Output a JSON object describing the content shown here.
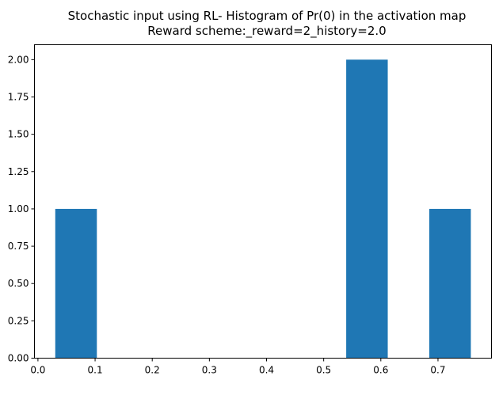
{
  "chart_data": {
    "type": "bar",
    "title_line1": "Stochastic input using RL- Histogram of Pr(0) in the activation map",
    "title_line2": "Reward scheme:_reward=2_history=2.0",
    "xlabel": "",
    "ylabel": "",
    "xlim": [
      -0.0061,
      0.7936
    ],
    "ylim": [
      0,
      2.1
    ],
    "grid": false,
    "bar_color": "#1f77b4",
    "bins": [
      {
        "x0": 0.0303,
        "x1": 0.1031,
        "count": 1
      },
      {
        "x0": 0.1031,
        "x1": 0.1758,
        "count": 0
      },
      {
        "x0": 0.1758,
        "x1": 0.2485,
        "count": 0
      },
      {
        "x0": 0.2485,
        "x1": 0.3212,
        "count": 0
      },
      {
        "x0": 0.3212,
        "x1": 0.3939,
        "count": 0
      },
      {
        "x0": 0.3939,
        "x1": 0.4667,
        "count": 0
      },
      {
        "x0": 0.4667,
        "x1": 0.5394,
        "count": 0
      },
      {
        "x0": 0.5394,
        "x1": 0.6121,
        "count": 2
      },
      {
        "x0": 0.6121,
        "x1": 0.6848,
        "count": 0
      },
      {
        "x0": 0.6848,
        "x1": 0.7575,
        "count": 1
      }
    ],
    "x_ticks": [
      0.0,
      0.1,
      0.2,
      0.3,
      0.4,
      0.5,
      0.6,
      0.7
    ],
    "x_tick_labels": [
      "0.0",
      "0.1",
      "0.2",
      "0.3",
      "0.4",
      "0.5",
      "0.6",
      "0.7"
    ],
    "y_ticks": [
      0,
      0.25,
      0.5,
      0.75,
      1.0,
      1.25,
      1.5,
      1.75,
      2.0
    ],
    "y_tick_labels": [
      "0.00",
      "0.25",
      "0.50",
      "0.75",
      "1.00",
      "1.25",
      "1.50",
      "1.75",
      "2.00"
    ]
  }
}
